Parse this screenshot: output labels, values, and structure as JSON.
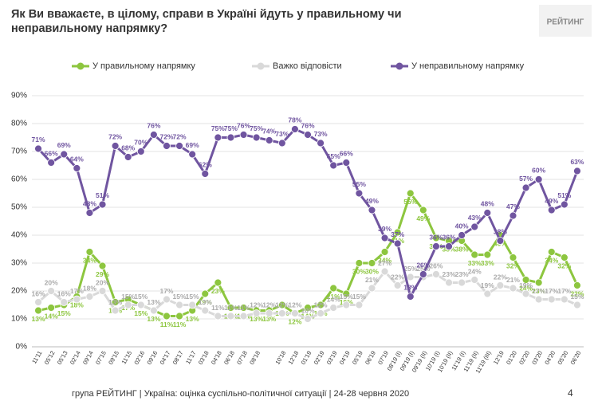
{
  "chart_data": {
    "type": "line",
    "title": "Як Ви вважаєте, в цілому, справи в Україні йдуть у правильному чи неправильному напрямку?",
    "logo": "РЕЙТИНГ",
    "footer": "група РЕЙТИНГ | Україна: оцінка суспільно-політичної ситуації | 24-28 червня 2020",
    "page": "4",
    "categories": [
      "11'11",
      "05'12",
      "05'13",
      "02'14",
      "09'14",
      "07'15",
      "09'15",
      "11'15",
      "02'16",
      "09'16",
      "04'17",
      "08'17",
      "11'17",
      "03'18",
      "04'18",
      "06'18",
      "07'18",
      "08'18",
      null,
      "10'18",
      "12'18",
      "01'19",
      "02'19",
      "03'19",
      "04'19",
      "05'19",
      "06'19",
      "07'19",
      "08'19 (I)",
      "09'19 (I)",
      "09'19 (II)",
      "10'19 (I)",
      "10'19 (II)",
      "11'19 (I)",
      "11'19 (II)",
      "11'19 (III)",
      "12'19",
      "01'20",
      "02'20",
      "03'20",
      "04'20",
      "05'20",
      "06'20"
    ],
    "ylim": [
      0,
      90
    ],
    "yticks": [
      {
        "value": 0,
        "label": "0%"
      },
      {
        "value": 10,
        "label": "10%"
      },
      {
        "value": 20,
        "label": "20%"
      },
      {
        "value": 30,
        "label": "30%"
      },
      {
        "value": 40,
        "label": "40%"
      },
      {
        "value": 50,
        "label": "50%"
      },
      {
        "value": 60,
        "label": "60%"
      },
      {
        "value": 70,
        "label": "70%"
      },
      {
        "value": 80,
        "label": "80%"
      },
      {
        "value": 90,
        "label": "90%"
      }
    ],
    "grid": true,
    "series": [
      {
        "name": "У правильному напрямку",
        "color": "#8dc63f",
        "values": [
          13,
          14,
          15,
          18,
          34,
          29,
          16,
          17,
          15,
          13,
          11,
          11,
          13,
          19,
          23,
          14,
          14,
          13,
          13,
          15,
          12,
          14,
          15,
          21,
          19,
          30,
          30,
          34,
          41,
          55,
          49,
          39,
          38,
          38,
          33,
          33,
          40,
          32,
          24,
          23,
          34,
          32,
          22
        ],
        "value_labels": [
          "13%",
          "14%",
          "15%",
          "18%",
          "34%",
          "29%",
          "16%",
          "17%",
          "15%",
          "13%",
          "11%",
          "11%",
          "13%",
          "19%",
          "23%",
          "14%",
          "14%",
          "13%",
          "13%",
          "15%",
          "12%",
          "14%",
          "15%",
          "21%",
          "19%",
          "30%",
          "30%",
          "34%",
          "41%",
          "55%",
          "49%",
          "39%",
          "38%",
          "38%",
          "33%",
          "33%",
          "40%",
          "32%",
          "24%",
          "23%",
          "34%",
          "32%",
          "22%"
        ]
      },
      {
        "name": "Важко відповісти",
        "color": "#d9d9d9",
        "values": [
          16,
          20,
          16,
          17,
          18,
          20,
          13,
          15,
          15,
          13,
          17,
          15,
          15,
          13,
          11,
          11,
          11,
          12,
          12,
          12,
          12,
          10,
          12,
          14,
          15,
          15,
          21,
          27,
          22,
          25,
          25,
          26,
          23,
          23,
          24,
          19,
          22,
          21,
          19,
          17,
          17,
          17,
          15
        ],
        "value_labels": [
          "16%",
          "20%",
          "16%",
          "17%",
          "18%",
          "20%",
          "13%",
          "15%",
          "15%",
          "13%",
          "17%",
          "15%",
          "15%",
          "13%",
          "11%",
          "11%",
          "11%",
          "12%",
          "12%",
          "12%",
          "12%",
          "10%",
          "12%",
          "14%",
          "15%",
          "15%",
          "21%",
          "27%",
          "22%",
          "25%",
          "25%",
          "26%",
          "23%",
          "23%",
          "24%",
          "19%",
          "22%",
          "21%",
          "19%",
          "17%",
          "17%",
          "17%",
          "15%"
        ]
      },
      {
        "name": "У неправильному напрямку",
        "color": "#7055a0",
        "values": [
          71,
          66,
          69,
          64,
          48,
          51,
          72,
          68,
          70,
          76,
          72,
          72,
          69,
          62,
          75,
          75,
          76,
          75,
          74,
          73,
          78,
          76,
          73,
          65,
          66,
          55,
          49,
          39,
          37,
          18,
          26,
          36,
          36,
          40,
          43,
          48,
          38,
          47,
          57,
          60,
          49,
          51,
          63
        ],
        "value_labels": [
          "71%",
          "66%",
          "69%",
          "64%",
          "48%",
          "51%",
          "72%",
          "68%",
          "70%",
          "76%",
          "72%",
          "72%",
          "69%",
          "62%",
          "75%",
          "75%",
          "76%",
          "75%",
          "74%",
          "73%",
          "78%",
          "76%",
          "73%",
          "65%",
          "66%",
          "55%",
          "49%",
          "39%",
          "37%",
          "18%",
          "26%",
          "36%",
          "36%",
          "40%",
          "43%",
          "48%",
          "38%",
          "47%",
          "57%",
          "60%",
          "49%",
          "51%",
          "63%"
        ]
      }
    ]
  }
}
